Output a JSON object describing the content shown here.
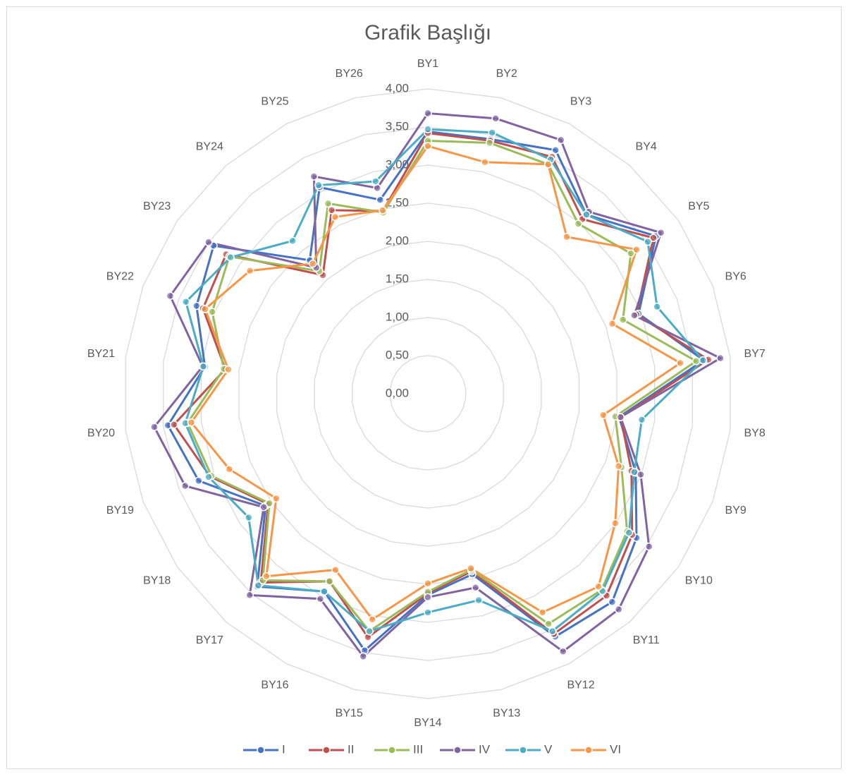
{
  "chart_data": {
    "type": "radar",
    "title": "Grafik Başlığı",
    "categories": [
      "BY1",
      "BY2",
      "BY3",
      "BY4",
      "BY5",
      "BY6",
      "BY7",
      "BY8",
      "BY9",
      "BY10",
      "BY11",
      "BY12",
      "BY13",
      "BY14",
      "BY15",
      "BY16",
      "BY17",
      "BY18",
      "BY19",
      "BY20",
      "BY21",
      "BY22",
      "BY23",
      "BY24",
      "BY25",
      "BY26"
    ],
    "rlim": [
      0,
      4
    ],
    "rticks": [
      {
        "value": 0,
        "label": "0,00"
      },
      {
        "value": 0.5,
        "label": "0,50"
      },
      {
        "value": 1,
        "label": "1,00"
      },
      {
        "value": 1.5,
        "label": "1,50"
      },
      {
        "value": 2,
        "label": "2,00"
      },
      {
        "value": 2.5,
        "label": "2,50"
      },
      {
        "value": 3,
        "label": "3,00"
      },
      {
        "value": 3.5,
        "label": "3,50"
      },
      {
        "value": 4,
        "label": "4,00"
      }
    ],
    "grid": true,
    "legend": "bottom",
    "series": [
      {
        "name": "I",
        "color": "#4472c4",
        "values": [
          3.44,
          3.44,
          3.61,
          3.14,
          3.64,
          2.96,
          3.65,
          2.53,
          2.92,
          3.33,
          3.65,
          3.6,
          2.44,
          2.64,
          3.47,
          2.93,
          3.38,
          2.59,
          3.22,
          3.44,
          2.95,
          3.25,
          3.42,
          2.34,
          3.06,
          2.62
        ]
      },
      {
        "name": "II",
        "color": "#c0504d",
        "values": [
          3.42,
          3.42,
          3.51,
          3.06,
          3.6,
          2.93,
          3.71,
          2.55,
          2.86,
          3.26,
          3.54,
          3.56,
          2.4,
          2.62,
          3.29,
          2.78,
          3.31,
          2.55,
          3.06,
          3.36,
          2.68,
          3.16,
          3.22,
          2.08,
          2.72,
          2.47
        ]
      },
      {
        "name": "III",
        "color": "#9bbb59",
        "values": [
          3.32,
          3.39,
          3.4,
          2.98,
          3.24,
          2.74,
          3.55,
          2.48,
          2.72,
          3.18,
          3.44,
          3.41,
          2.38,
          2.6,
          3.21,
          2.78,
          3.27,
          2.53,
          3.04,
          3.18,
          2.7,
          3.03,
          3.17,
          2.15,
          2.82,
          2.45
        ]
      },
      {
        "name": "IV",
        "color": "#8064a2",
        "values": [
          3.68,
          3.72,
          3.76,
          3.19,
          3.72,
          2.9,
          3.87,
          2.55,
          2.99,
          3.53,
          3.78,
          3.82,
          2.62,
          2.67,
          3.55,
          3.04,
          3.53,
          2.62,
          3.41,
          3.62,
          2.98,
          3.62,
          3.5,
          2.21,
          3.22,
          2.78
        ]
      },
      {
        "name": "V",
        "color": "#4bacc6",
        "values": [
          3.47,
          3.53,
          3.47,
          3.14,
          3.51,
          3.22,
          3.64,
          2.83,
          2.9,
          3.21,
          3.46,
          3.52,
          2.79,
          2.87,
          3.21,
          2.93,
          3.36,
          2.86,
          3.08,
          3.21,
          2.97,
          3.4,
          3.15,
          2.68,
          3.09,
          2.87
        ]
      },
      {
        "name": "VI",
        "color": "#f79646",
        "values": [
          3.25,
          3.13,
          3.4,
          2.75,
          3.33,
          2.59,
          3.34,
          2.32,
          2.68,
          2.99,
          3.38,
          3.24,
          2.36,
          2.49,
          3.05,
          2.61,
          3.2,
          2.42,
          2.79,
          3.13,
          2.64,
          3.13,
          2.84,
          2.28,
          2.62,
          2.48
        ]
      }
    ]
  }
}
